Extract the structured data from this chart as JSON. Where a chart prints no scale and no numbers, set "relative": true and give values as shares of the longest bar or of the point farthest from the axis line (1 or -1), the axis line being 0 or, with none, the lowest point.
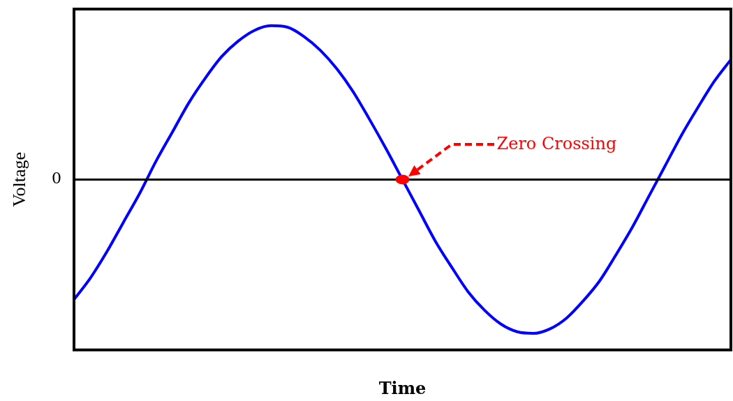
{
  "chart_data": {
    "type": "line",
    "xlabel": "Time",
    "ylabel": "Voltage",
    "relative": true,
    "marker": "none",
    "categories": [
      null,
      null,
      null,
      null,
      null,
      null,
      null,
      null,
      null,
      null,
      null,
      null,
      null,
      null,
      null,
      null,
      null,
      null,
      null,
      null,
      null,
      null,
      null,
      null,
      null,
      null,
      null,
      null,
      null,
      null,
      null,
      null,
      null,
      null,
      null,
      null,
      null,
      null,
      null,
      null,
      null
    ],
    "series": [
      {
        "color": "#0000ff",
        "values": [
          -0.78,
          -0.64,
          -0.47,
          -0.28,
          -0.09,
          0.12,
          0.31,
          0.5,
          0.66,
          0.8,
          0.9,
          0.97,
          1.0,
          0.99,
          0.93,
          0.84,
          0.72,
          0.57,
          0.39,
          0.2,
          0.0,
          -0.2,
          -0.4,
          -0.57,
          -0.73,
          -0.85,
          -0.94,
          -0.99,
          -1.0,
          -0.97,
          -0.9,
          -0.79,
          -0.66,
          -0.49,
          -0.31,
          -0.11,
          0.09,
          0.29,
          0.47,
          0.64,
          0.78
        ]
      }
    ],
    "ref_lines": [
      {
        "axis": "y",
        "value": 0,
        "label": "0",
        "color": "#000000"
      }
    ],
    "annotations": [
      {
        "text": "Zero Crossing",
        "y": 0
      }
    ]
  }
}
